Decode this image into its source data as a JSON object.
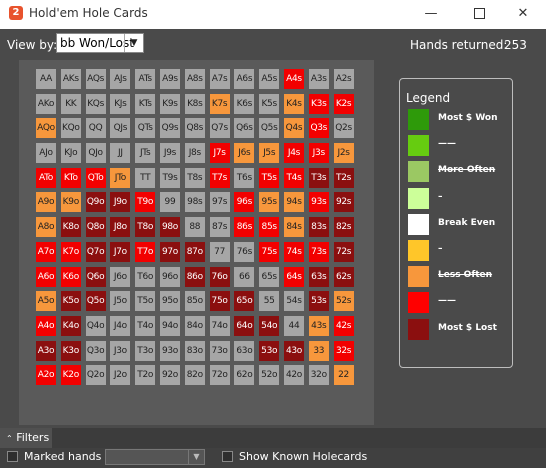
{
  "window": {
    "title": "Hold'em Hole Cards",
    "icon_letter": "2"
  },
  "toolbar": {
    "view_by_label": "View by:",
    "view_by_value": "bb Won/Lost",
    "hands_returned_label": "Hands returned:",
    "hands_returned_value": "253"
  },
  "grid": {
    "rows": [
      [
        [
          "AA",
          "w"
        ],
        [
          "AKs",
          "w"
        ],
        [
          "AQs",
          "w"
        ],
        [
          "AJs",
          "w"
        ],
        [
          "ATs",
          "w"
        ],
        [
          "A9s",
          "w"
        ],
        [
          "A8s",
          "w"
        ],
        [
          "A7s",
          "w"
        ],
        [
          "A6s",
          "w"
        ],
        [
          "A5s",
          "w"
        ],
        [
          "A4s",
          "r"
        ],
        [
          "A3s",
          "w"
        ],
        [
          "A2s",
          "w"
        ]
      ],
      [
        [
          "AKo",
          "w"
        ],
        [
          "KK",
          "w"
        ],
        [
          "KQs",
          "w"
        ],
        [
          "KJs",
          "w"
        ],
        [
          "KTs",
          "w"
        ],
        [
          "K9s",
          "w"
        ],
        [
          "K8s",
          "w"
        ],
        [
          "K7s",
          "o"
        ],
        [
          "K6s",
          "w"
        ],
        [
          "K5s",
          "w"
        ],
        [
          "K4s",
          "o"
        ],
        [
          "K3s",
          "r"
        ],
        [
          "K2s",
          "r"
        ]
      ],
      [
        [
          "AQo",
          "o"
        ],
        [
          "KQo",
          "w"
        ],
        [
          "QQ",
          "w"
        ],
        [
          "QJs",
          "w"
        ],
        [
          "QTs",
          "w"
        ],
        [
          "Q9s",
          "w"
        ],
        [
          "Q8s",
          "w"
        ],
        [
          "Q7s",
          "w"
        ],
        [
          "Q6s",
          "w"
        ],
        [
          "Q5s",
          "w"
        ],
        [
          "Q4s",
          "o"
        ],
        [
          "Q3s",
          "r"
        ],
        [
          "Q2s",
          "w"
        ]
      ],
      [
        [
          "AJo",
          "w"
        ],
        [
          "KJo",
          "w"
        ],
        [
          "QJo",
          "w"
        ],
        [
          "JJ",
          "w"
        ],
        [
          "JTs",
          "w"
        ],
        [
          "J9s",
          "w"
        ],
        [
          "J8s",
          "w"
        ],
        [
          "J7s",
          "r"
        ],
        [
          "J6s",
          "o"
        ],
        [
          "J5s",
          "o"
        ],
        [
          "J4s",
          "r"
        ],
        [
          "J3s",
          "r"
        ],
        [
          "J2s",
          "o"
        ]
      ],
      [
        [
          "ATo",
          "r"
        ],
        [
          "KTo",
          "r"
        ],
        [
          "QTo",
          "r"
        ],
        [
          "JTo",
          "o"
        ],
        [
          "TT",
          "w"
        ],
        [
          "T9s",
          "w"
        ],
        [
          "T8s",
          "w"
        ],
        [
          "T7s",
          "r"
        ],
        [
          "T6s",
          "w"
        ],
        [
          "T5s",
          "r"
        ],
        [
          "T4s",
          "r"
        ],
        [
          "T3s",
          "d"
        ],
        [
          "T2s",
          "d"
        ]
      ],
      [
        [
          "A9o",
          "o"
        ],
        [
          "K9o",
          "o"
        ],
        [
          "Q9o",
          "d"
        ],
        [
          "J9o",
          "d"
        ],
        [
          "T9o",
          "r"
        ],
        [
          "99",
          "w"
        ],
        [
          "98s",
          "w"
        ],
        [
          "97s",
          "w"
        ],
        [
          "96s",
          "r"
        ],
        [
          "95s",
          "o"
        ],
        [
          "94s",
          "o"
        ],
        [
          "93s",
          "r"
        ],
        [
          "92s",
          "d"
        ]
      ],
      [
        [
          "A8o",
          "o"
        ],
        [
          "K8o",
          "d"
        ],
        [
          "Q8o",
          "d"
        ],
        [
          "J8o",
          "d"
        ],
        [
          "T8o",
          "d"
        ],
        [
          "98o",
          "d"
        ],
        [
          "88",
          "w"
        ],
        [
          "87s",
          "w"
        ],
        [
          "86s",
          "r"
        ],
        [
          "85s",
          "r"
        ],
        [
          "84s",
          "o"
        ],
        [
          "83s",
          "d"
        ],
        [
          "82s",
          "d"
        ]
      ],
      [
        [
          "A7o",
          "r"
        ],
        [
          "K7o",
          "r"
        ],
        [
          "Q7o",
          "d"
        ],
        [
          "J7o",
          "d"
        ],
        [
          "T7o",
          "r"
        ],
        [
          "97o",
          "d"
        ],
        [
          "87o",
          "d"
        ],
        [
          "77",
          "w"
        ],
        [
          "76s",
          "w"
        ],
        [
          "75s",
          "r"
        ],
        [
          "74s",
          "r"
        ],
        [
          "73s",
          "r"
        ],
        [
          "72s",
          "d"
        ]
      ],
      [
        [
          "A6o",
          "r"
        ],
        [
          "K6o",
          "r"
        ],
        [
          "Q6o",
          "d"
        ],
        [
          "J6o",
          "w"
        ],
        [
          "T6o",
          "w"
        ],
        [
          "96o",
          "w"
        ],
        [
          "86o",
          "d"
        ],
        [
          "76o",
          "d"
        ],
        [
          "66",
          "w"
        ],
        [
          "65s",
          "w"
        ],
        [
          "64s",
          "r"
        ],
        [
          "63s",
          "d"
        ],
        [
          "62s",
          "d"
        ]
      ],
      [
        [
          "A5o",
          "o"
        ],
        [
          "K5o",
          "d"
        ],
        [
          "Q5o",
          "d"
        ],
        [
          "J5o",
          "w"
        ],
        [
          "T5o",
          "w"
        ],
        [
          "95o",
          "w"
        ],
        [
          "85o",
          "w"
        ],
        [
          "75o",
          "d"
        ],
        [
          "65o",
          "d"
        ],
        [
          "55",
          "w"
        ],
        [
          "54s",
          "w"
        ],
        [
          "53s",
          "d"
        ],
        [
          "52s",
          "o"
        ]
      ],
      [
        [
          "A4o",
          "r"
        ],
        [
          "K4o",
          "d"
        ],
        [
          "Q4o",
          "w"
        ],
        [
          "J4o",
          "w"
        ],
        [
          "T4o",
          "w"
        ],
        [
          "94o",
          "w"
        ],
        [
          "84o",
          "w"
        ],
        [
          "74o",
          "w"
        ],
        [
          "64o",
          "d"
        ],
        [
          "54o",
          "d"
        ],
        [
          "44",
          "w"
        ],
        [
          "43s",
          "o"
        ],
        [
          "42s",
          "r"
        ]
      ],
      [
        [
          "A3o",
          "d"
        ],
        [
          "K3o",
          "d"
        ],
        [
          "Q3o",
          "w"
        ],
        [
          "J3o",
          "w"
        ],
        [
          "T3o",
          "w"
        ],
        [
          "93o",
          "w"
        ],
        [
          "83o",
          "w"
        ],
        [
          "73o",
          "w"
        ],
        [
          "63o",
          "w"
        ],
        [
          "53o",
          "d"
        ],
        [
          "43o",
          "d"
        ],
        [
          "33",
          "o"
        ],
        [
          "32s",
          "r"
        ]
      ],
      [
        [
          "A2o",
          "r"
        ],
        [
          "K2o",
          "r"
        ],
        [
          "Q2o",
          "w"
        ],
        [
          "J2o",
          "w"
        ],
        [
          "T2o",
          "w"
        ],
        [
          "92o",
          "w"
        ],
        [
          "82o",
          "w"
        ],
        [
          "72o",
          "w"
        ],
        [
          "62o",
          "w"
        ],
        [
          "52o",
          "w"
        ],
        [
          "42o",
          "w"
        ],
        [
          "32o",
          "w"
        ],
        [
          "22",
          "o"
        ]
      ]
    ]
  },
  "colors": {
    "w": "#a6a6a6",
    "o": "#f7973c",
    "y": "#f5c449",
    "r": "#f20000",
    "d": "#8b0f0f"
  },
  "legend": {
    "title": "Legend",
    "items": [
      {
        "color": "#2e9a0a",
        "label": "Most $ Won",
        "strike": false
      },
      {
        "color": "#66cc10",
        "label": "——",
        "strike": false
      },
      {
        "color": "#9bc863",
        "label": "More Often",
        "strike": true
      },
      {
        "color": "#ccff99",
        "label": "–",
        "strike": false
      },
      {
        "color": "#ffffff",
        "label": "Break Even",
        "strike": false
      },
      {
        "color": "#ffc629",
        "label": "–",
        "strike": false
      },
      {
        "color": "#f7973c",
        "label": "Less Often",
        "strike": true
      },
      {
        "color": "#ff0000",
        "label": "——",
        "strike": false
      },
      {
        "color": "#8b0f0f",
        "label": "Most $ Lost",
        "strike": false
      }
    ]
  },
  "filters": {
    "toggle_label": "Filters",
    "toggle_icon": "chevron-up-icon"
  },
  "bottom": {
    "marked_hands_label": "Marked hands",
    "show_known_label": "Show Known Holecards"
  }
}
